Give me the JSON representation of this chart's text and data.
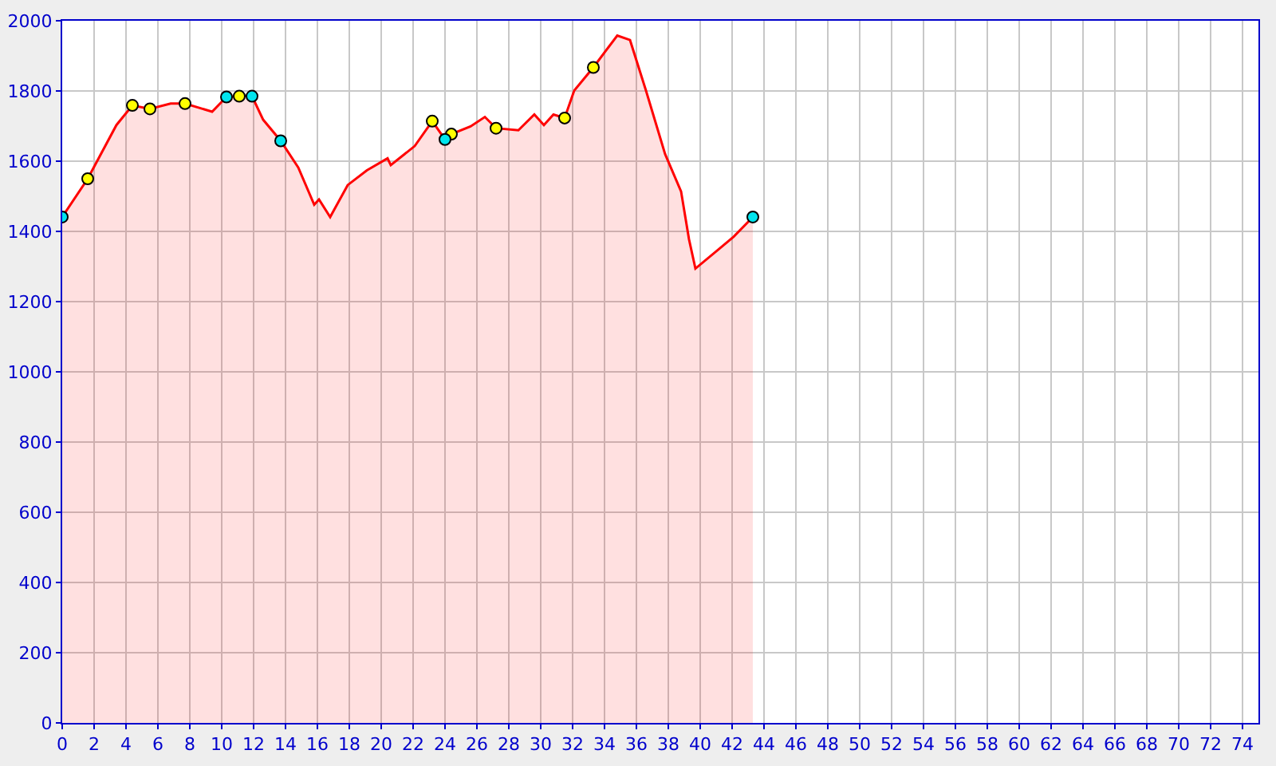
{
  "chart_data": {
    "type": "area",
    "xlim": [
      0,
      75
    ],
    "ylim": [
      0,
      2000
    ],
    "xticks": [
      0,
      2,
      4,
      6,
      8,
      10,
      12,
      14,
      16,
      18,
      20,
      22,
      24,
      26,
      28,
      30,
      32,
      34,
      36,
      38,
      40,
      42,
      44,
      46,
      48,
      50,
      52,
      54,
      56,
      58,
      60,
      62,
      64,
      66,
      68,
      70,
      72,
      74
    ],
    "yticks": [
      0,
      200,
      400,
      600,
      800,
      1000,
      1200,
      1400,
      1600,
      1800,
      2000
    ],
    "grid": true,
    "marker": "none",
    "series": [
      {
        "color": "#ff0000",
        "x": [
          0,
          1.6,
          3.4,
          4.4,
          5.5,
          6.8,
          7.7,
          9.4,
          10.3,
          11.1,
          11.9,
          12.6,
          13.7,
          14.8,
          15.8,
          16.1,
          16.8,
          17.9,
          19.1,
          20.4,
          20.6,
          22.1,
          23.2,
          24.0,
          24.4,
          25.6,
          26.5,
          27.2,
          28.6,
          29.6,
          30.2,
          30.8,
          31.5,
          32.1,
          33.3,
          34.8,
          35.6,
          36.6,
          37.8,
          38.8,
          39.3,
          39.7,
          41.1,
          42.1,
          43.3
        ],
        "values": [
          1441,
          1550,
          1703,
          1759,
          1749,
          1764,
          1764,
          1741,
          1783,
          1785,
          1785,
          1718,
          1658,
          1582,
          1476,
          1491,
          1441,
          1532,
          1574,
          1608,
          1589,
          1643,
          1714,
          1662,
          1677,
          1699,
          1726,
          1694,
          1688,
          1733,
          1703,
          1733,
          1723,
          1801,
          1867,
          1958,
          1945,
          1801,
          1620,
          1514,
          1377,
          1294,
          1347,
          1385,
          1441
        ]
      },
      {
        "type": "scatter",
        "color": "#ffff00",
        "marker": "circle",
        "x": [
          1.6,
          4.4,
          5.5,
          7.7,
          11.1,
          23.2,
          24.4,
          27.2,
          31.5,
          33.3
        ],
        "values": [
          1550,
          1759,
          1749,
          1764,
          1785,
          1714,
          1677,
          1694,
          1723,
          1867
        ]
      },
      {
        "type": "scatter",
        "color": "#00e5ee",
        "marker": "circle",
        "x": [
          0,
          10.3,
          11.9,
          13.7,
          24.0,
          43.3
        ],
        "values": [
          1441,
          1783,
          1785,
          1658,
          1662,
          1441
        ]
      }
    ]
  }
}
